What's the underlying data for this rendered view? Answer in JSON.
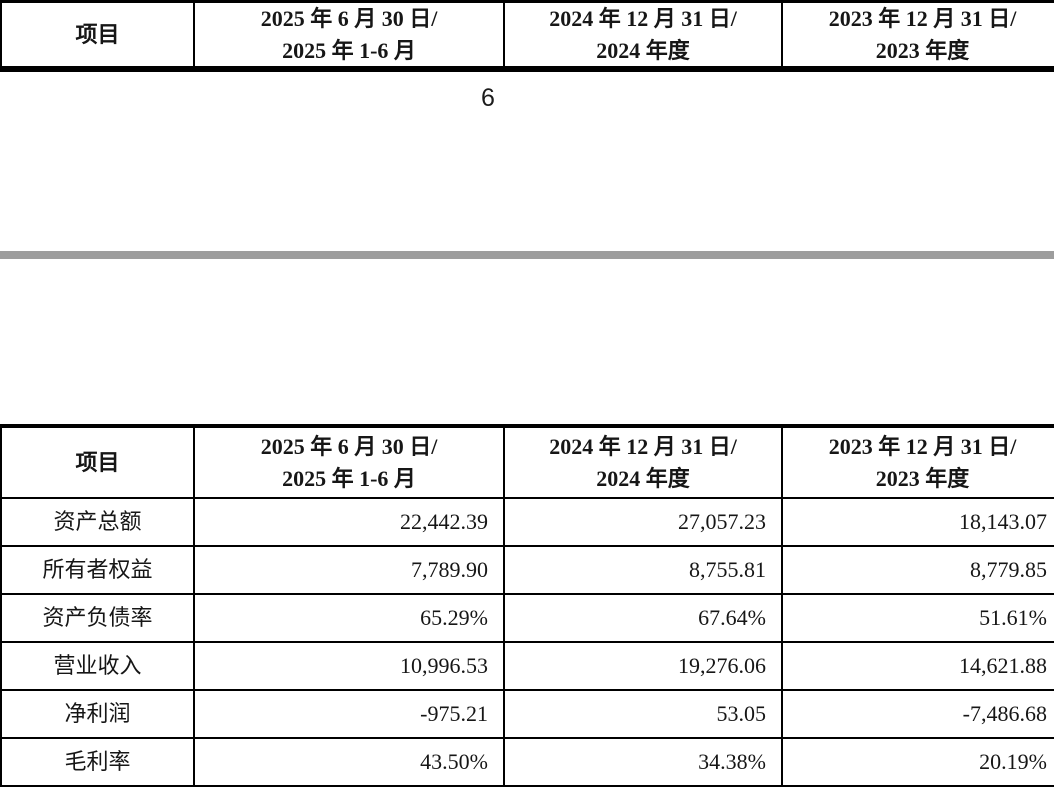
{
  "document": {
    "page_number": "6"
  },
  "colors": {
    "background": "#ffffff",
    "table_border": "#000000",
    "text": "#161616",
    "page_gap": "#9d9d9d"
  },
  "table": {
    "header": {
      "item": "项目",
      "p2025_line1": "2025 年 6 月 30 日/",
      "p2025_line2": "2025 年 1-6 月",
      "p2024_line1": "2024 年 12 月 31 日/",
      "p2024_line2": "2024 年度",
      "p2023_line1": "2023 年 12 月 31 日/",
      "p2023_line2": "2023 年度"
    },
    "rows": [
      {
        "label": "资产总额",
        "v2025": "22,442.39",
        "v2024": "27,057.23",
        "v2023": "18,143.07"
      },
      {
        "label": "所有者权益",
        "v2025": "7,789.90",
        "v2024": "8,755.81",
        "v2023": "8,779.85"
      },
      {
        "label": "资产负债率",
        "v2025": "65.29%",
        "v2024": "67.64%",
        "v2023": "51.61%"
      },
      {
        "label": "营业收入",
        "v2025": "10,996.53",
        "v2024": "19,276.06",
        "v2023": "14,621.88"
      },
      {
        "label": "净利润",
        "v2025": "-975.21",
        "v2024": "53.05",
        "v2023": "-7,486.68"
      },
      {
        "label": "毛利率",
        "v2025": "43.50%",
        "v2024": "34.38%",
        "v2023": "20.19%"
      }
    ]
  }
}
